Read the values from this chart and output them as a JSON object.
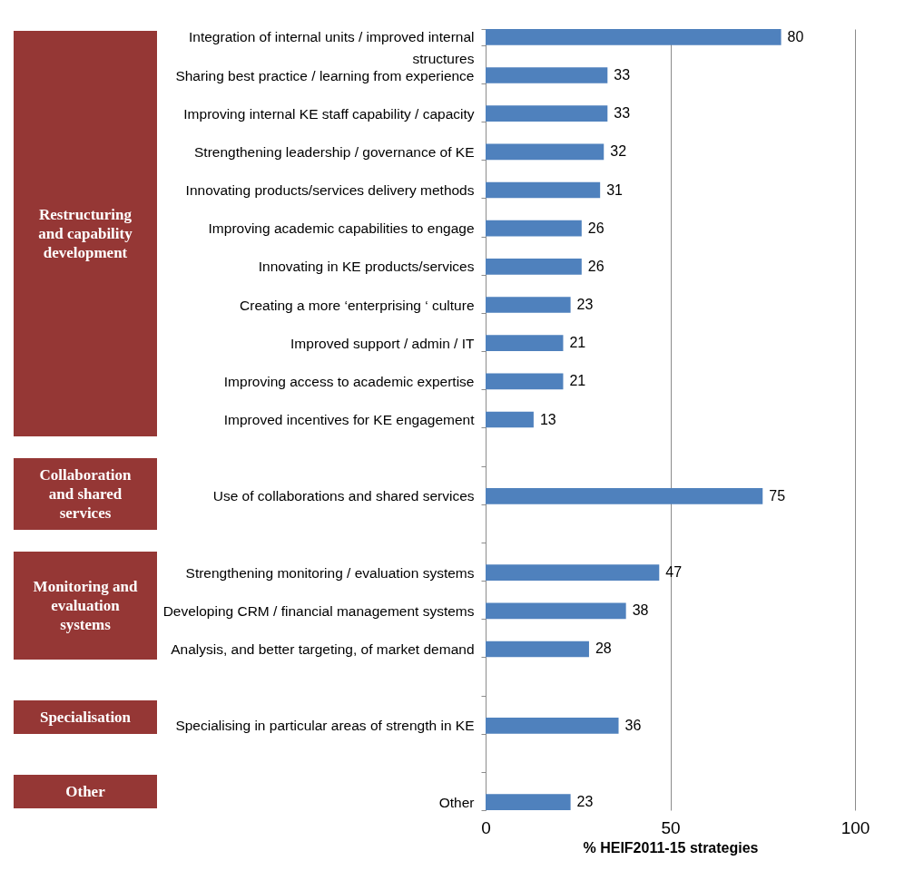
{
  "chart_data": {
    "type": "bar",
    "orientation": "horizontal",
    "xlabel": "% HEIF2011-15 strategies",
    "categories": [
      "Integration of internal units / improved internal structures",
      "Sharing best practice / learning from experience",
      "Improving internal KE staff capability / capacity",
      "Strengthening leadership / governance of KE",
      "Innovating products/services delivery methods",
      "Improving academic capabilities to engage",
      "Innovating in KE products/services",
      "Creating a more ‘enterprising ‘ culture",
      "Improved support / admin / IT",
      "Improving access to academic expertise",
      "Improved incentives for KE engagement",
      null,
      "Use of collaborations and shared services",
      null,
      "Strengthening monitoring / evaluation systems",
      "Developing CRM / financial management systems",
      "Analysis, and better targeting, of market demand",
      null,
      "Specialising in particular areas of strength in KE",
      null,
      "Other"
    ],
    "values": [
      80,
      33,
      33,
      32,
      31,
      26,
      26,
      23,
      21,
      21,
      13,
      null,
      75,
      null,
      47,
      38,
      28,
      null,
      36,
      null,
      23
    ],
    "color": "#4f81bd",
    "data_labels": true,
    "xlim": [
      0,
      100
    ],
    "xticks": [
      0,
      50,
      100
    ],
    "grid": "x",
    "annotations": [
      "Restructuring and capability development",
      "Collaboration and shared services",
      "Monitoring and evaluation systems",
      "Specialisation",
      "Other"
    ]
  }
}
